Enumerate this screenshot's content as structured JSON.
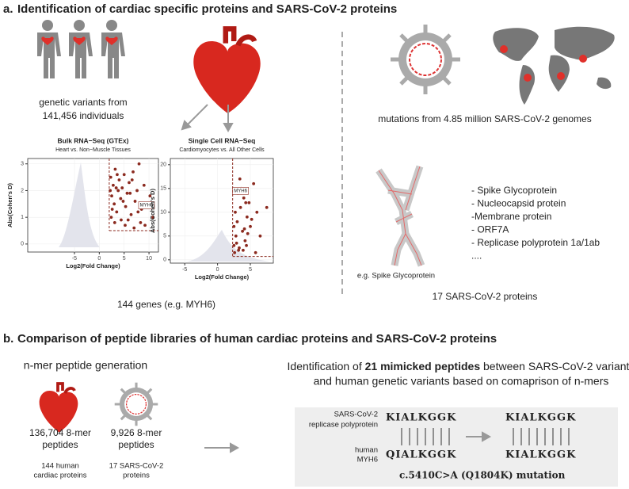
{
  "panel_a": {
    "label": "a.",
    "title": "Identification of cardiac specific proteins and SARS-CoV-2 proteins",
    "human_text": [
      "genetic variants from",
      "141,456 individuals"
    ],
    "genes_text": "144 genes (e.g. MYH6)",
    "mutations_text": "mutations from 4.85 million SARS-CoV-2 genomes",
    "protein_list": [
      "- Spike Glycoprotein",
      "- Nucleocapsid protein",
      "-Membrane protein",
      "- ORF7A",
      "- Replicase polyprotein 1a/1ab",
      "...."
    ],
    "spike_caption": "e.g. Spike Glycoprotein",
    "proteins_text": "17 SARS-CoV-2 proteins"
  },
  "chart_data": [
    {
      "type": "scatter",
      "title": "Bulk RNA−Seq (GTEx)",
      "subtitle": "Heart vs. Non−Muscle Tissues",
      "x_label": "Log2(Fold Change)",
      "y_label": "Abs(Cohen's D)",
      "color": "#8b2a1f",
      "xlim": [
        -14.4,
        11.9
      ],
      "ylim": [
        -0.3,
        3.2
      ],
      "xticks": [
        -5,
        0,
        5,
        10
      ],
      "yticks": [
        0,
        1,
        2,
        3
      ],
      "thresholds": {
        "x": 2,
        "y": 0.5
      },
      "annotation": {
        "text": "MYH6",
        "x": 9.5,
        "y": 1.45
      },
      "x": [
        2.3,
        2.5,
        2.8,
        3.0,
        3.2,
        3.5,
        3.8,
        4.0,
        4.3,
        4.6,
        5.0,
        5.3,
        5.6,
        6.0,
        6.4,
        6.8,
        7.2,
        7.6,
        8.0,
        8.5,
        9.0,
        9.5,
        10.2,
        10.8,
        2.4,
        3.1,
        3.6,
        4.4,
        5.2,
        6.2,
        7.0,
        8.3,
        2.6,
        3.4,
        4.8,
        5.8,
        6.6,
        7.8,
        9.2,
        2.2
      ],
      "values": [
        2.5,
        1.8,
        2.2,
        1.5,
        2.8,
        1.2,
        2.0,
        2.4,
        1.7,
        2.1,
        2.6,
        1.4,
        1.9,
        2.3,
        1.1,
        2.7,
        1.6,
        2.0,
        3.0,
        1.3,
        2.2,
        1.5,
        1.8,
        1.0,
        1.0,
        0.8,
        2.6,
        0.9,
        0.7,
        1.9,
        0.6,
        0.8,
        1.3,
        2.1,
        1.6,
        0.9,
        2.4,
        1.2,
        0.7,
        2.0
      ]
    },
    {
      "type": "scatter",
      "title": "Single Cell RNA−Seq",
      "subtitle": "Cardiomyocytes vs. All Other Cells",
      "x_label": "Log2(Fold Change)",
      "y_label": "Abs(Cohen's D)",
      "color": "#8b2a1f",
      "xlim": [
        -7.2,
        8.5
      ],
      "ylim": [
        -0.7,
        21.3
      ],
      "xticks": [
        -5,
        0,
        5
      ],
      "yticks": [
        0,
        5,
        10,
        15,
        20
      ],
      "thresholds": {
        "x": 2.3,
        "y": 0.7
      },
      "annotation": {
        "text": "MYH6",
        "x": 3.5,
        "y": 14.5
      },
      "x": [
        2.5,
        2.8,
        3.0,
        3.2,
        3.5,
        3.8,
        4.0,
        4.2,
        4.5,
        4.8,
        5.0,
        5.5,
        6.0,
        6.5,
        7.5,
        2.6,
        2.9,
        3.3,
        3.6,
        4.1,
        4.4,
        5.2,
        2.7,
        3.1,
        3.9,
        4.6,
        5.8,
        2.5,
        3.4,
        4.3
      ],
      "values": [
        3,
        5,
        8,
        2,
        11,
        6,
        13,
        4,
        9,
        12,
        7,
        16,
        10,
        5,
        11,
        1.5,
        3.5,
        2.5,
        15,
        6.5,
        3,
        8.5,
        10,
        14,
        2,
        5.5,
        1.5,
        7,
        17,
        12
      ]
    }
  ],
  "panel_b": {
    "label": "b.",
    "title": "Comparison of peptide libraries of human cardiac proteins and SARS-CoV-2 proteins",
    "nmer_title": "n-mer peptide generation",
    "human_count": [
      "136,704 8-mer",
      "peptides"
    ],
    "human_source": [
      "144 human",
      "cardiac proteins"
    ],
    "virus_count": [
      "9,926 8-mer",
      "peptides"
    ],
    "virus_source": [
      "17 SARS-CoV-2",
      "proteins"
    ],
    "identification": {
      "pre": "Identification of ",
      "bold": "21 mimicked peptides",
      "post": " between SARS-CoV-2 variants",
      "line2": "and human genetic variants based on comaprison of n-mers"
    },
    "virus_label": [
      "SARS-CoV-2",
      "replicase polyprotein"
    ],
    "human_label": [
      "human",
      "MYH6"
    ],
    "virus_seq": "KIALKGGK",
    "human_seq": "QIALKGGK",
    "virus_seq_after": "KIALKGGK",
    "human_seq_after": "KIALKGGK",
    "mutation": "c.5410C>A (Q1804K) mutation"
  }
}
